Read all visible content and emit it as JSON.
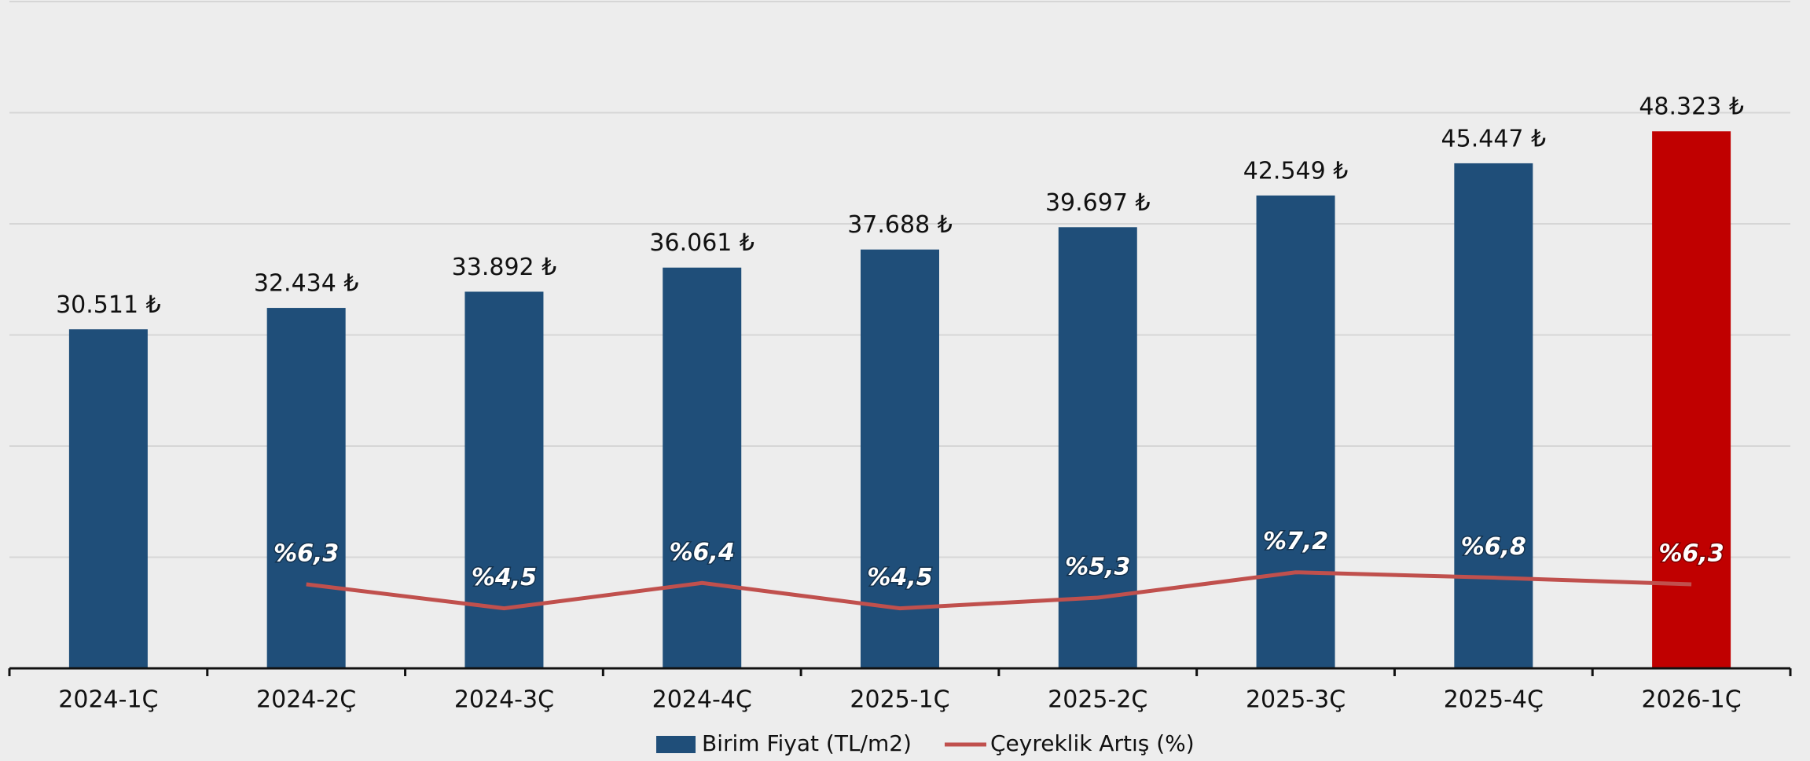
{
  "chart_data": {
    "type": "bar-line",
    "categories": [
      "2024-1Ç",
      "2024-2Ç",
      "2024-3Ç",
      "2024-4Ç",
      "2025-1Ç",
      "2025-2Ç",
      "2025-3Ç",
      "2025-4Ç",
      "2026-1Ç"
    ],
    "series": [
      {
        "name": "Birim Fiyat (TL/m2)",
        "type": "bar",
        "color": "#1f4e79",
        "colors": [
          "#1f4e79",
          "#1f4e79",
          "#1f4e79",
          "#1f4e79",
          "#1f4e79",
          "#1f4e79",
          "#1f4e79",
          "#1f4e79",
          "#c00000"
        ],
        "values": [
          30511,
          32434,
          33892,
          36061,
          37688,
          39697,
          42549,
          45447,
          48323
        ],
        "value_labels": [
          "30.511 ₺",
          "32.434 ₺",
          "33.892 ₺",
          "36.061 ₺",
          "37.688 ₺",
          "39.697 ₺",
          "42.549 ₺",
          "45.447 ₺",
          "48.323 ₺"
        ]
      },
      {
        "name": "Çeyreklik Artış (%)",
        "type": "line",
        "axis": "y2",
        "color": "#c0504d",
        "values": [
          null,
          6.3,
          4.5,
          6.4,
          4.5,
          5.3,
          7.2,
          6.8,
          6.3
        ],
        "value_labels": [
          null,
          "%6,3",
          "%4,5",
          "%6,4",
          "%4,5",
          "%5,3",
          "%7,2",
          "%6,8",
          "%6,3"
        ]
      }
    ],
    "ylim": [
      0,
      60000
    ],
    "yticks": [
      0,
      10000,
      20000,
      30000,
      40000,
      50000,
      60000
    ],
    "y2lim": [
      0,
      50
    ],
    "grid": true,
    "legend": "bottom"
  }
}
